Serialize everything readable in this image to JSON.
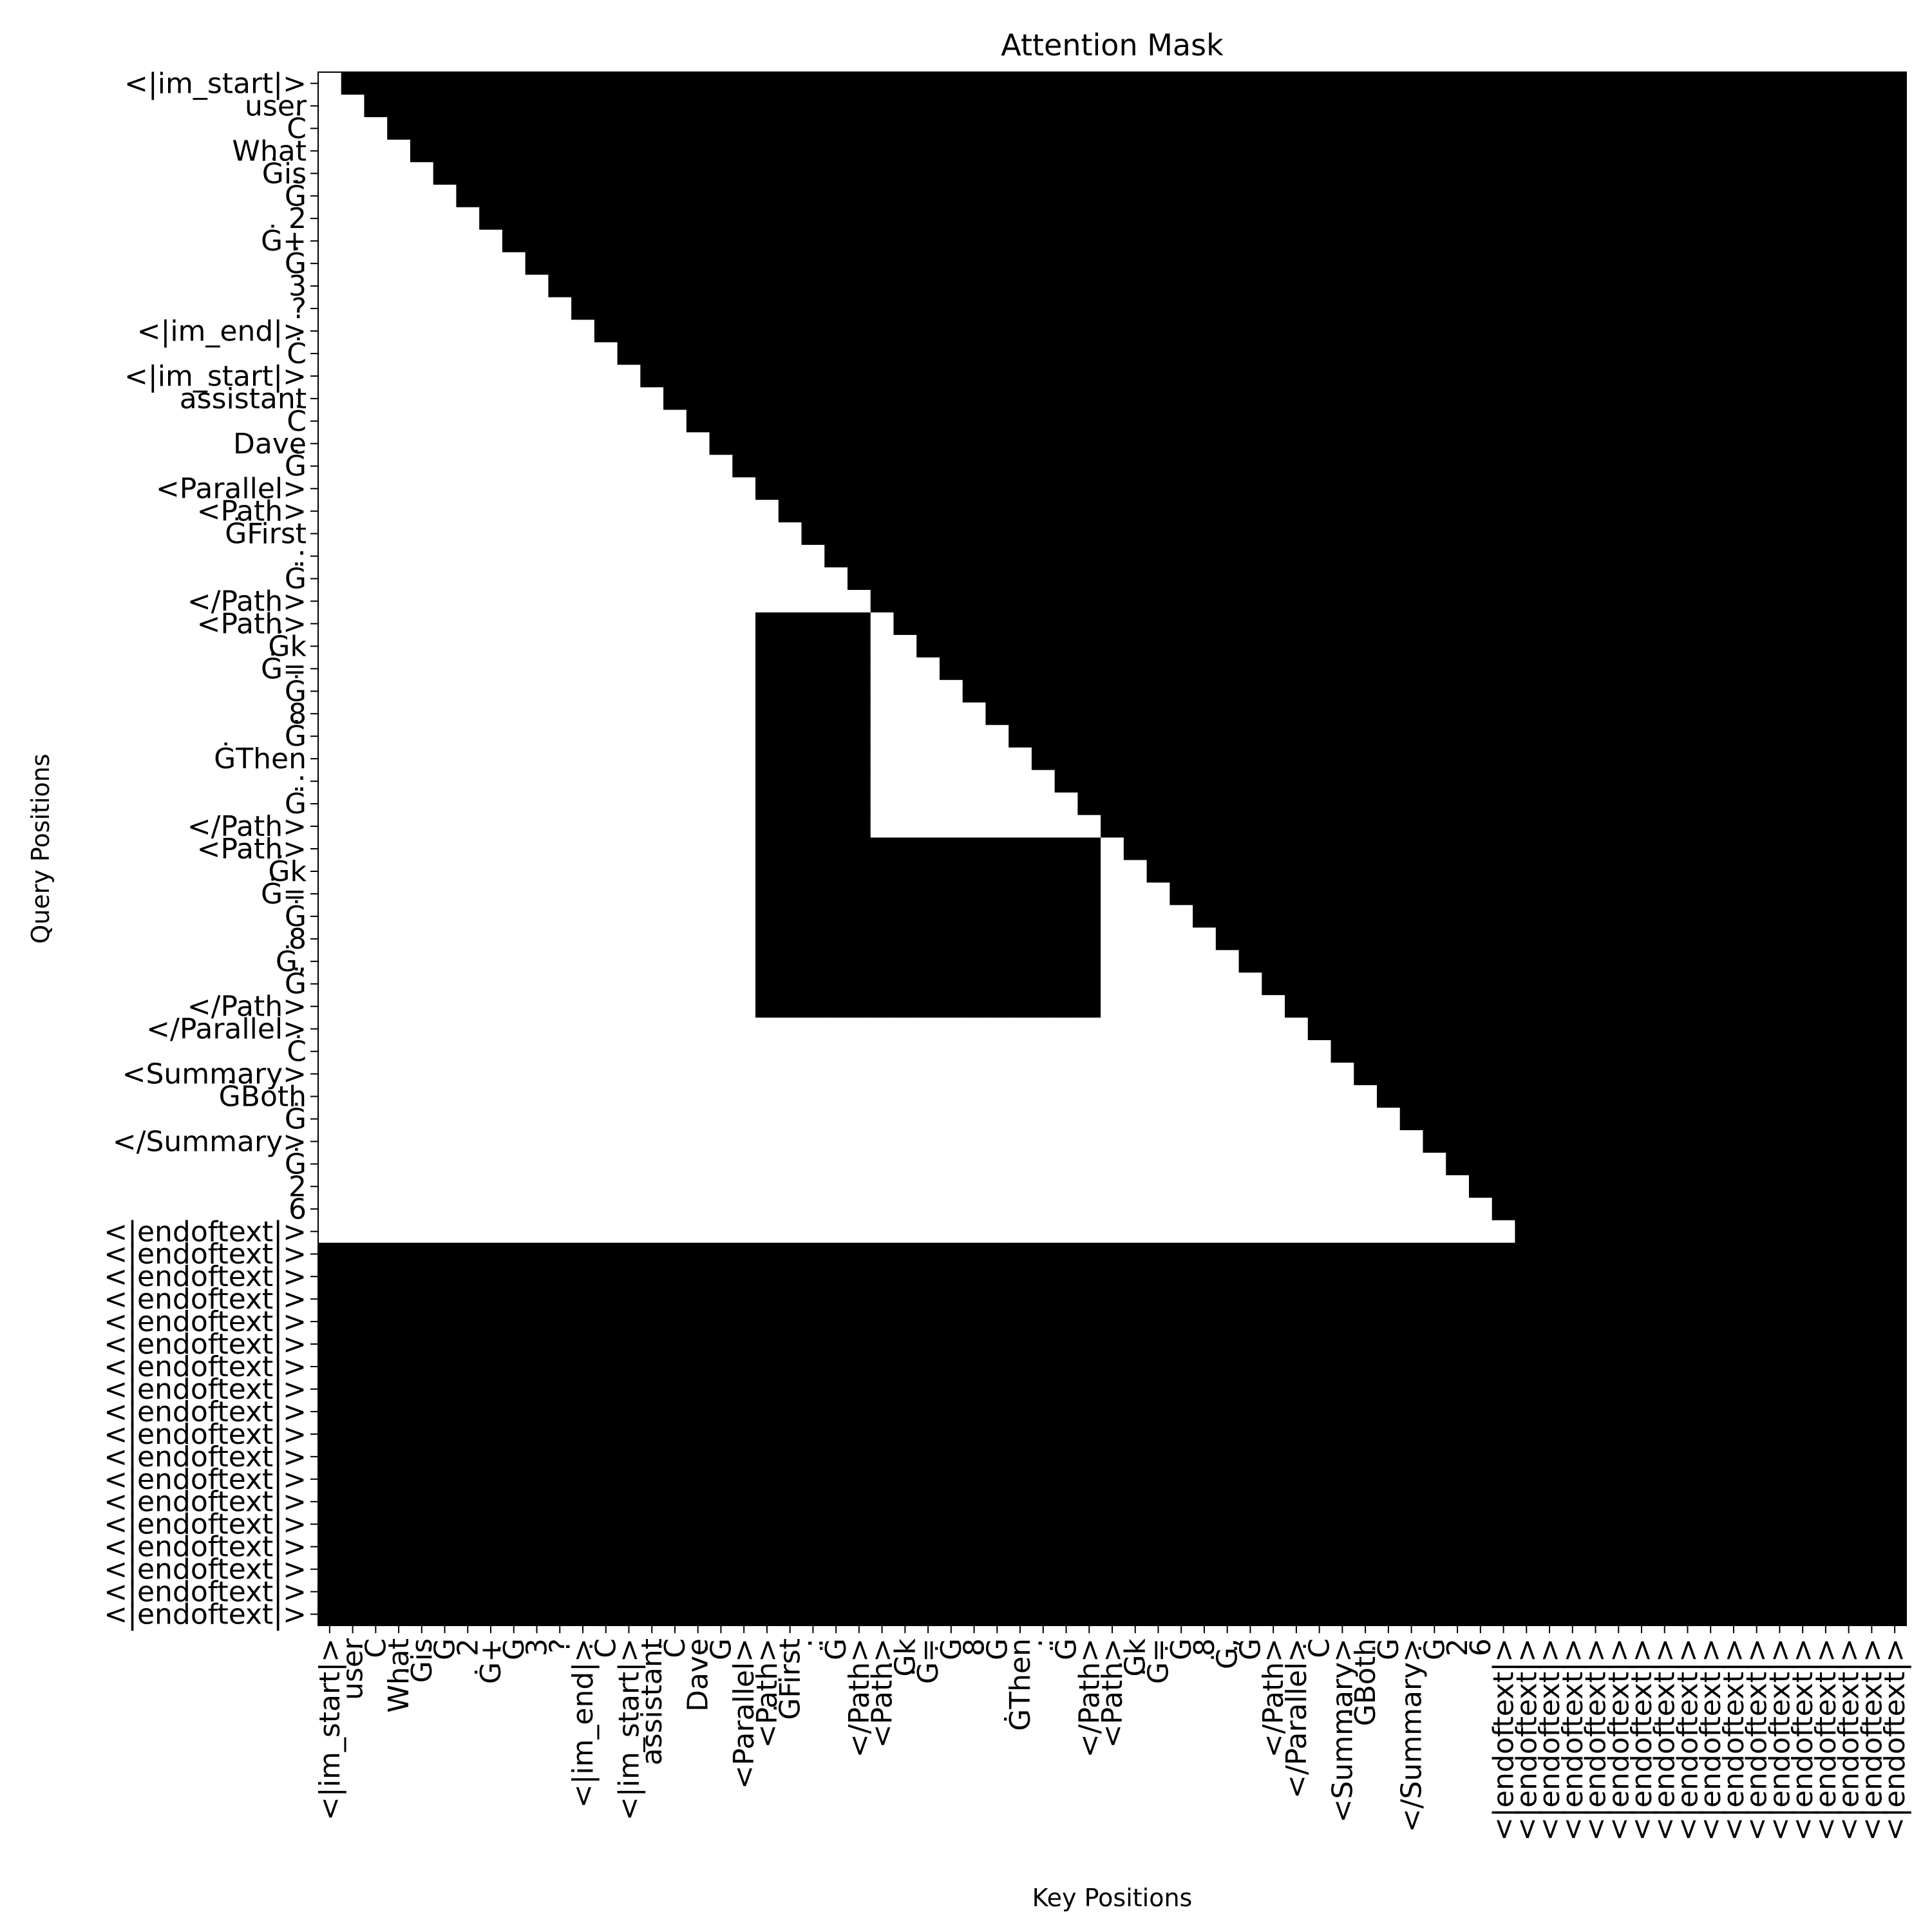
{
  "chart_data": {
    "type": "heatmap",
    "title": "Attention Mask",
    "xlabel": "Key Positions",
    "ylabel": "Query Positions",
    "colormap": {
      "allowed": "#ffffff",
      "masked": "#000000"
    },
    "tokens": [
      "<|im_start|>",
      "user",
      "Ċ",
      "What",
      "Ġis",
      "Ġ",
      "2",
      "Ġ+",
      "Ġ",
      "3",
      "?",
      "<|im_end|>",
      "Ċ",
      "<|im_start|>",
      "assistant",
      "Ċ",
      "Dave",
      "Ġ",
      "<Parallel>",
      "<Path>",
      "ĠFirst",
      ":",
      "Ġ",
      "</Path>",
      "<Path>",
      "Ġk",
      "Ġ=",
      "Ġ",
      "8",
      "Ġ",
      "ĠThen",
      ":",
      "Ġ",
      "</Path>",
      "<Path>",
      "Ġk",
      "Ġ=",
      "Ġ",
      "8",
      "Ġ,",
      "Ġ",
      "</Path>",
      "</Parallel>",
      "Ċ",
      "<Summary>",
      "ĠBoth",
      "Ġ",
      "</Summary>",
      "Ġ",
      "2",
      "6",
      "<|endoftext|>",
      "<|endoftext|>",
      "<|endoftext|>",
      "<|endoftext|>",
      "<|endoftext|>",
      "<|endoftext|>",
      "<|endoftext|>",
      "<|endoftext|>",
      "<|endoftext|>",
      "<|endoftext|>",
      "<|endoftext|>",
      "<|endoftext|>",
      "<|endoftext|>",
      "<|endoftext|>",
      "<|endoftext|>",
      "<|endoftext|>",
      "<|endoftext|>",
      "<|endoftext|>"
    ],
    "mask_rule": {
      "description": "1 = attend (white), 0 = masked (black)",
      "causal": true,
      "valid_query_rows": [
        0,
        51
      ],
      "padding_rows": [
        52,
        68
      ],
      "blocked_regions": [
        {
          "rows": [
            24,
            33
          ],
          "cols": [
            19,
            23
          ]
        },
        {
          "rows": [
            34,
            41
          ],
          "cols": [
            19,
            33
          ]
        }
      ]
    }
  }
}
